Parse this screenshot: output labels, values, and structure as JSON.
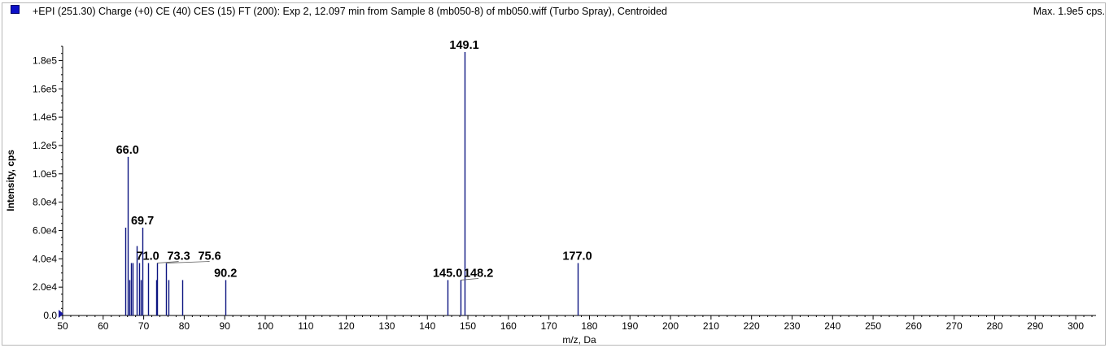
{
  "header": {
    "title": "+EPI (251.30) Charge (+0) CE (40) CES (15) FT (200): Exp 2, 12.097 min from Sample 8 (mb050-8) of mb050.wiff (Turbo Spray), Centroided",
    "max_label": "Max. 1.9e5 cps.",
    "legend_color": "#0c10c8",
    "legend_icon": "square-series-swatch"
  },
  "colors": {
    "peak": "#0c1480",
    "axis": "#000000",
    "cursor_marker": "#1a1aa0"
  },
  "chart_data": {
    "type": "bar",
    "title": "+EPI (251.30) Charge (+0) CE (40) CES (15) FT (200): Exp 2, 12.097 min from Sample 8 (mb050-8) of mb050.wiff (Turbo Spray), Centroided",
    "xlabel": "m/z, Da",
    "ylabel": "Intensity, cps",
    "xlim": [
      50,
      305
    ],
    "ylim": [
      0,
      190000
    ],
    "x_ticks": [
      50,
      60,
      70,
      80,
      90,
      100,
      110,
      120,
      130,
      140,
      150,
      160,
      170,
      180,
      190,
      200,
      210,
      220,
      230,
      240,
      250,
      260,
      270,
      280,
      290,
      300
    ],
    "y_ticks": [
      {
        "value": 0,
        "label": "0.0"
      },
      {
        "value": 20000,
        "label": "2.0e4"
      },
      {
        "value": 40000,
        "label": "4.0e4"
      },
      {
        "value": 60000,
        "label": "6.0e4"
      },
      {
        "value": 80000,
        "label": "8.0e4"
      },
      {
        "value": 100000,
        "label": "1.0e5"
      },
      {
        "value": 120000,
        "label": "1.2e5"
      },
      {
        "value": 140000,
        "label": "1.4e5"
      },
      {
        "value": 160000,
        "label": "1.6e5"
      },
      {
        "value": 180000,
        "label": "1.8e5"
      }
    ],
    "grid": false,
    "peaks": [
      {
        "mz": 65.5,
        "intensity": 62000
      },
      {
        "mz": 66.0,
        "intensity": 112000
      },
      {
        "mz": 66.4,
        "intensity": 25000
      },
      {
        "mz": 66.8,
        "intensity": 37000
      },
      {
        "mz": 67.3,
        "intensity": 37000
      },
      {
        "mz": 68.2,
        "intensity": 49000
      },
      {
        "mz": 68.8,
        "intensity": 37000
      },
      {
        "mz": 69.3,
        "intensity": 25000
      },
      {
        "mz": 69.7,
        "intensity": 62000
      },
      {
        "mz": 71.0,
        "intensity": 37000
      },
      {
        "mz": 73.0,
        "intensity": 25000
      },
      {
        "mz": 73.3,
        "intensity": 37000
      },
      {
        "mz": 75.6,
        "intensity": 37000
      },
      {
        "mz": 76.2,
        "intensity": 25000
      },
      {
        "mz": 79.5,
        "intensity": 25000
      },
      {
        "mz": 90.2,
        "intensity": 25000
      },
      {
        "mz": 145.0,
        "intensity": 25000
      },
      {
        "mz": 148.2,
        "intensity": 25000
      },
      {
        "mz": 149.1,
        "intensity": 186000
      },
      {
        "mz": 177.0,
        "intensity": 37000
      }
    ],
    "peak_labels": [
      {
        "text": "149.1",
        "mz": 149.1,
        "intensity": 186000
      },
      {
        "text": "66.0",
        "mz": 66.0,
        "intensity": 112000
      },
      {
        "text": "69.7",
        "mz": 69.7,
        "intensity": 62000
      },
      {
        "text": "71.0",
        "mz": 71.0,
        "intensity": 37000
      },
      {
        "text": "73.3",
        "mz": 73.3,
        "intensity": 37000
      },
      {
        "text": "75.6",
        "mz": 75.6,
        "intensity": 37000
      },
      {
        "text": "90.2",
        "mz": 90.2,
        "intensity": 25000
      },
      {
        "text": "145.0",
        "mz": 145.0,
        "intensity": 25000
      },
      {
        "text": "148.2",
        "mz": 148.2,
        "intensity": 25000
      },
      {
        "text": "177.0",
        "mz": 177.0,
        "intensity": 37000
      }
    ]
  }
}
